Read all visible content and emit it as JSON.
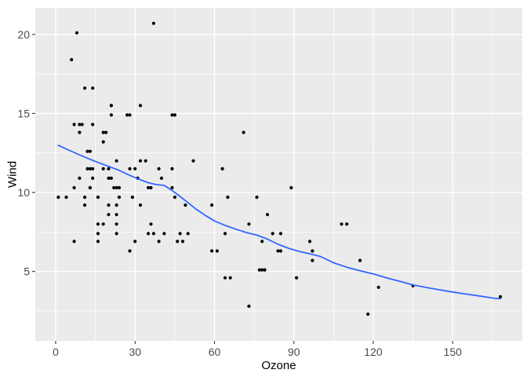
{
  "chart_data": {
    "type": "scatter",
    "title": "",
    "xlabel": "Ozone",
    "ylabel": "Wind",
    "xlim": [
      -7.7,
      176.3
    ],
    "ylim": [
      0.61,
      21.68
    ],
    "x_ticks": [
      0,
      30,
      60,
      90,
      120,
      150
    ],
    "x_tick_labels": [
      "0",
      "30",
      "60",
      "90",
      "120",
      "150"
    ],
    "x_minor_ticks": [
      15,
      45,
      75,
      105,
      135,
      165
    ],
    "y_ticks": [
      5,
      10,
      15,
      20
    ],
    "y_tick_labels": [
      "5",
      "10",
      "15",
      "20"
    ],
    "y_minor_ticks": [
      2.5,
      7.5,
      12.5,
      17.5
    ],
    "grid": "major-and-minor-white-on-gray",
    "legend": "none",
    "points": [
      [
        41,
        7.4
      ],
      [
        36,
        8.0
      ],
      [
        12,
        12.6
      ],
      [
        18,
        11.5
      ],
      [
        28,
        14.9
      ],
      [
        23,
        8.6
      ],
      [
        19,
        13.8
      ],
      [
        8,
        20.1
      ],
      [
        7,
        6.9
      ],
      [
        16,
        9.7
      ],
      [
        11,
        9.2
      ],
      [
        14,
        10.9
      ],
      [
        18,
        13.2
      ],
      [
        14,
        11.5
      ],
      [
        34,
        12.0
      ],
      [
        6,
        18.4
      ],
      [
        30,
        11.5
      ],
      [
        11,
        9.7
      ],
      [
        1,
        9.7
      ],
      [
        11,
        16.6
      ],
      [
        4,
        9.7
      ],
      [
        32,
        12.0
      ],
      [
        23,
        12.0
      ],
      [
        45,
        14.9
      ],
      [
        115,
        5.7
      ],
      [
        37,
        7.4
      ],
      [
        29,
        9.7
      ],
      [
        71,
        13.8
      ],
      [
        39,
        11.5
      ],
      [
        23,
        8.0
      ],
      [
        21,
        14.9
      ],
      [
        37,
        20.7
      ],
      [
        20,
        9.2
      ],
      [
        12,
        11.5
      ],
      [
        13,
        10.3
      ],
      [
        135,
        4.1
      ],
      [
        49,
        9.2
      ],
      [
        32,
        9.2
      ],
      [
        64,
        4.6
      ],
      [
        40,
        10.9
      ],
      [
        77,
        5.1
      ],
      [
        97,
        6.3
      ],
      [
        97,
        5.7
      ],
      [
        85,
        7.4
      ],
      [
        10,
        14.3
      ],
      [
        27,
        14.9
      ],
      [
        7,
        14.3
      ],
      [
        48,
        6.9
      ],
      [
        35,
        10.3
      ],
      [
        61,
        6.3
      ],
      [
        79,
        5.1
      ],
      [
        63,
        11.5
      ],
      [
        16,
        6.9
      ],
      [
        80,
        8.6
      ],
      [
        108,
        8.0
      ],
      [
        20,
        8.6
      ],
      [
        52,
        12.0
      ],
      [
        82,
        7.4
      ],
      [
        50,
        7.4
      ],
      [
        64,
        7.4
      ],
      [
        59,
        9.2
      ],
      [
        39,
        6.9
      ],
      [
        9,
        13.8
      ],
      [
        16,
        7.4
      ],
      [
        78,
        6.9
      ],
      [
        35,
        7.4
      ],
      [
        66,
        4.6
      ],
      [
        122,
        4.0
      ],
      [
        89,
        10.3
      ],
      [
        110,
        8.0
      ],
      [
        44,
        11.5
      ],
      [
        28,
        11.5
      ],
      [
        65,
        9.7
      ],
      [
        22,
        10.3
      ],
      [
        59,
        6.3
      ],
      [
        23,
        7.4
      ],
      [
        31,
        10.9
      ],
      [
        44,
        10.3
      ],
      [
        21,
        15.5
      ],
      [
        9,
        14.3
      ],
      [
        45,
        9.7
      ],
      [
        168,
        3.4
      ],
      [
        73,
        8.0
      ],
      [
        76,
        9.7
      ],
      [
        118,
        2.3
      ],
      [
        84,
        6.3
      ],
      [
        85,
        6.3
      ],
      [
        96,
        6.9
      ],
      [
        78,
        5.1
      ],
      [
        73,
        2.8
      ],
      [
        91,
        4.6
      ],
      [
        47,
        7.4
      ],
      [
        32,
        15.5
      ],
      [
        20,
        10.9
      ],
      [
        23,
        10.3
      ],
      [
        21,
        10.9
      ],
      [
        24,
        9.7
      ],
      [
        44,
        14.9
      ],
      [
        21,
        15.5
      ],
      [
        28,
        6.3
      ],
      [
        9,
        10.9
      ],
      [
        13,
        11.5
      ],
      [
        46,
        6.9
      ],
      [
        18,
        13.8
      ],
      [
        13,
        10.3
      ],
      [
        24,
        10.3
      ],
      [
        16,
        8.0
      ],
      [
        13,
        12.6
      ],
      [
        23,
        9.2
      ],
      [
        36,
        10.3
      ],
      [
        7,
        10.3
      ],
      [
        14,
        16.6
      ],
      [
        30,
        6.9
      ],
      [
        14,
        14.3
      ],
      [
        18,
        8.0
      ],
      [
        20,
        11.5
      ]
    ],
    "smooth_line": {
      "name": "loess-smooth",
      "color": "#3366FF",
      "points": [
        [
          1,
          12.98
        ],
        [
          4,
          12.75
        ],
        [
          8,
          12.45
        ],
        [
          12,
          12.17
        ],
        [
          16,
          11.9
        ],
        [
          20,
          11.65
        ],
        [
          24,
          11.4
        ],
        [
          28,
          11.08
        ],
        [
          32,
          10.8
        ],
        [
          35,
          10.62
        ],
        [
          38,
          10.5
        ],
        [
          41,
          10.45
        ],
        [
          44,
          10.12
        ],
        [
          47,
          9.75
        ],
        [
          50,
          9.35
        ],
        [
          53,
          8.95
        ],
        [
          57,
          8.5
        ],
        [
          60,
          8.2
        ],
        [
          64,
          7.92
        ],
        [
          68,
          7.68
        ],
        [
          72,
          7.47
        ],
        [
          76,
          7.3
        ],
        [
          80,
          7.05
        ],
        [
          84,
          6.72
        ],
        [
          88,
          6.47
        ],
        [
          92,
          6.27
        ],
        [
          96,
          6.12
        ],
        [
          100,
          5.95
        ],
        [
          105,
          5.55
        ],
        [
          110,
          5.27
        ],
        [
          115,
          5.05
        ],
        [
          120,
          4.85
        ],
        [
          125,
          4.6
        ],
        [
          130,
          4.38
        ],
        [
          135,
          4.15
        ],
        [
          140,
          3.99
        ],
        [
          145,
          3.84
        ],
        [
          150,
          3.7
        ],
        [
          155,
          3.57
        ],
        [
          160,
          3.45
        ],
        [
          164,
          3.35
        ],
        [
          166,
          3.3
        ],
        [
          168,
          3.28
        ]
      ]
    },
    "style": {
      "point_color": "#000000",
      "point_radius": 2.1,
      "line_width": 1.8,
      "panel_background": "#EBEBEB",
      "gridline_color": "#FFFFFF",
      "axis_text_color": "#4D4D4D",
      "tick_mark_color": "#333333",
      "axis_title_color": "#000000",
      "page_background": "#FFFFFF"
    }
  }
}
